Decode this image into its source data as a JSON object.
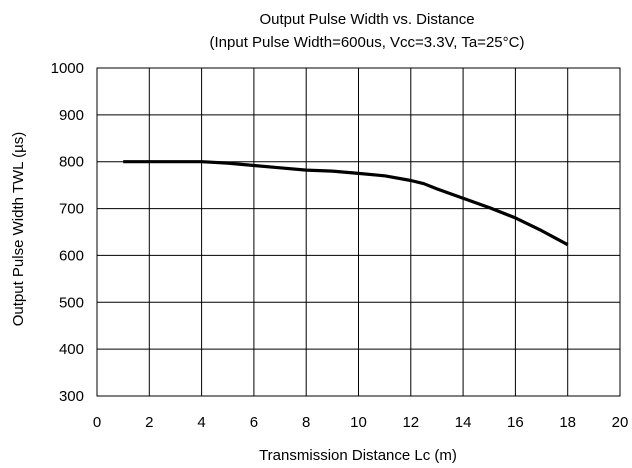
{
  "chart_data": {
    "type": "line",
    "title": "Output Pulse Width vs. Distance",
    "subtitle": "(Input Pulse Width=600us, Vcc=3.3V, Ta=25°C)",
    "xlabel": "Transmission Distance Lc (m)",
    "ylabel": "Output Pulse Width TWL (µs)",
    "xlim": [
      0,
      20
    ],
    "ylim": [
      300,
      1000
    ],
    "xticks": [
      0,
      2,
      4,
      6,
      8,
      10,
      12,
      14,
      16,
      18,
      20
    ],
    "yticks": [
      300,
      400,
      500,
      600,
      700,
      800,
      900,
      1000
    ],
    "grid": true,
    "legend": "none",
    "series": [
      {
        "color": "#000000",
        "x": [
          1,
          2,
          3,
          4,
          5,
          6,
          7,
          8,
          9,
          10,
          11,
          12,
          12.5,
          13,
          14,
          15,
          16,
          17,
          18
        ],
        "y": [
          800,
          800,
          800,
          800,
          797,
          792,
          787,
          782,
          780,
          775,
          770,
          760,
          753,
          742,
          722,
          702,
          680,
          653,
          623
        ]
      }
    ]
  }
}
